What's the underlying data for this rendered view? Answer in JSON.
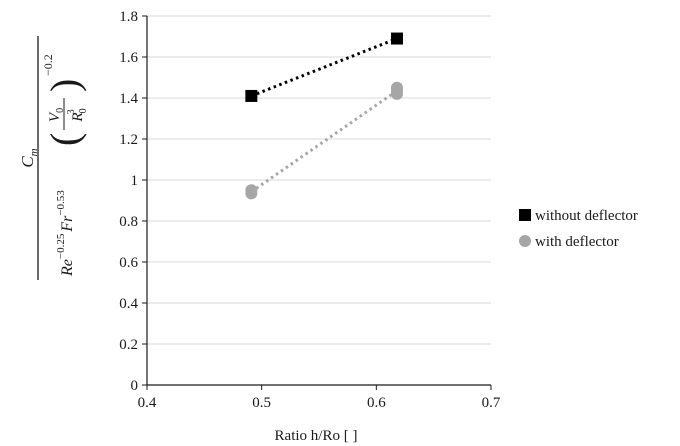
{
  "chart_data": {
    "type": "scatter",
    "xlabel": "Ratio h/Ro [ ]",
    "ylabel": {
      "numerator": "C",
      "numerator_sub": "m",
      "re": "Re",
      "re_exp": "−0.25",
      "fr": "Fr",
      "fr_exp": "−0.53",
      "v": "V",
      "v_sub": "0",
      "r": "R",
      "r_sub": "0",
      "r_exp": "3",
      "outer_exp": "−0.2"
    },
    "xlim": [
      0.4,
      0.7
    ],
    "ylim": [
      0,
      1.8
    ],
    "x_ticks": [
      "0.4",
      "0.5",
      "0.6",
      "0.7"
    ],
    "y_ticks": [
      "0",
      "0.2",
      "0.4",
      "0.6",
      "0.8",
      "1",
      "1.2",
      "1.4",
      "1.6",
      "1.8"
    ],
    "x_tick_values": [
      0.4,
      0.5,
      0.6,
      0.7
    ],
    "y_tick_values": [
      0,
      0.2,
      0.4,
      0.6,
      0.8,
      1.0,
      1.2,
      1.4,
      1.6,
      1.8
    ],
    "grid": "horizontal",
    "legend_position": "right",
    "series": [
      {
        "name": "without deflector",
        "color": "#000000",
        "marker": "square",
        "line": "dotted",
        "points": [
          {
            "x": 0.491,
            "y": 1.41
          },
          {
            "x": 0.618,
            "y": 1.69
          }
        ]
      },
      {
        "name": "with deflector",
        "color": "#a6a6a6",
        "marker": "circle",
        "line": "dotted",
        "points": [
          {
            "x": 0.491,
            "y": 0.95
          },
          {
            "x": 0.491,
            "y": 0.935
          },
          {
            "x": 0.618,
            "y": 1.45
          },
          {
            "x": 0.618,
            "y": 1.435
          },
          {
            "x": 0.618,
            "y": 1.42
          }
        ]
      }
    ]
  }
}
